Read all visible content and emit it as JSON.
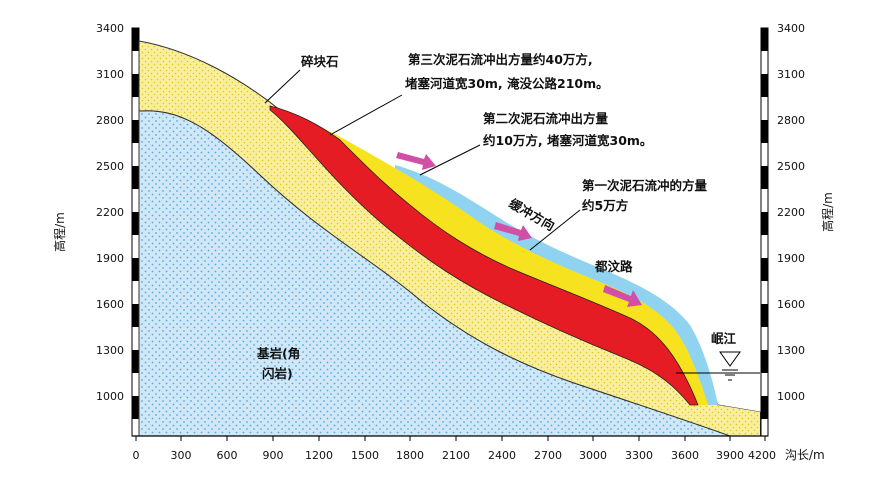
{
  "axes": {
    "y_label_left": "高程/m",
    "y_label_right": "高程/m",
    "x_label": "沟长/m",
    "y_ticks": [
      "3400",
      "3100",
      "2800",
      "2500",
      "2200",
      "1900",
      "1600",
      "1300",
      "1000"
    ],
    "x_ticks": [
      "0",
      "300",
      "600",
      "900",
      "1200",
      "1500",
      "1800",
      "2100",
      "2400",
      "2700",
      "3000",
      "3300",
      "3600",
      "3900",
      "4200"
    ]
  },
  "labels": {
    "rubble": "碎块石",
    "third_line1": "第三次泥石流冲出方量约40万方,",
    "third_line2": "堵塞河道宽30m, 淹没公路210m。",
    "second_line1": "第二次泥石流冲出方量",
    "second_line2": "约10万方, 堵塞河道宽30m。",
    "first_line1": "第一次泥石流冲的方量",
    "first_line2": "约5万方",
    "direction": "缓冲方向",
    "road": "都汶路",
    "river": "岷江",
    "bedrock_line1": "基岩(角",
    "bedrock_line2": "闪岩)"
  },
  "colors": {
    "bedrock": "#c8e4f5",
    "colluvium": "#f7eea0",
    "third_flow": "#e8202a",
    "second_flow": "#f5e320",
    "first_flow": "#8ed1ee",
    "arrow": "#d24fa8"
  }
}
